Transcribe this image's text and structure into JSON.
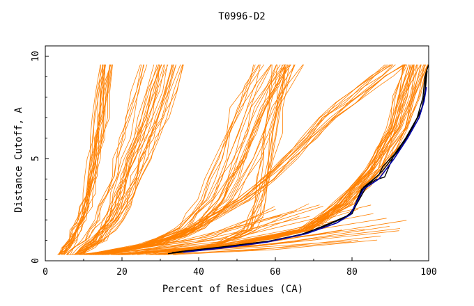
{
  "chart_data": {
    "type": "line",
    "title": "T0996-D2",
    "xlabel": "Percent of Residues (CA)",
    "ylabel": "Distance Cutoff, A",
    "xlim": [
      0,
      100
    ],
    "ylim": [
      0,
      10
    ],
    "xticks": [
      0,
      20,
      40,
      60,
      80,
      100
    ],
    "yticks": [
      0,
      5,
      10
    ],
    "xtick_labels": [
      "0",
      "20",
      "40",
      "60",
      "80",
      "100"
    ],
    "ytick_labels": [
      "0",
      "5",
      "10"
    ],
    "grid": false,
    "legend": "none",
    "colors": {
      "models": "#ff8000",
      "highlight_dark": "#000000",
      "highlight_blue": "#0000aa"
    },
    "series_groups": [
      {
        "name": "steep-left-models",
        "color": "#ff8000",
        "count": 18,
        "points": [
          [
            4,
            0.3
          ],
          [
            7,
            1.0
          ],
          [
            9,
            2.0
          ],
          [
            11,
            3.3
          ],
          [
            12.5,
            5.0
          ],
          [
            14,
            7.0
          ],
          [
            15.5,
            9.6
          ]
        ],
        "spread": 4.5
      },
      {
        "name": "left-mid-models",
        "color": "#ff8000",
        "count": 28,
        "points": [
          [
            8,
            0.3
          ],
          [
            13,
            1.0
          ],
          [
            17,
            2.0
          ],
          [
            20,
            3.3
          ],
          [
            23,
            5.0
          ],
          [
            27,
            7.0
          ],
          [
            31,
            9.6
          ]
        ],
        "spread": 12
      },
      {
        "name": "center-models",
        "color": "#ff8000",
        "count": 24,
        "points": [
          [
            12,
            0.3
          ],
          [
            28,
            0.8
          ],
          [
            38,
            1.6
          ],
          [
            45,
            3.0
          ],
          [
            50,
            5.0
          ],
          [
            55,
            7.5
          ],
          [
            61,
            9.6
          ]
        ],
        "spread": 14
      },
      {
        "name": "near-58-models",
        "color": "#ff8000",
        "count": 10,
        "points": [
          [
            30,
            0.3
          ],
          [
            45,
            0.8
          ],
          [
            53,
            1.5
          ],
          [
            56,
            3.0
          ],
          [
            58,
            5.0
          ],
          [
            60,
            7.5
          ],
          [
            62,
            9.6
          ]
        ],
        "spread": 5
      },
      {
        "name": "right-curve-models",
        "color": "#ff8000",
        "count": 30,
        "points": [
          [
            20,
            0.3
          ],
          [
            50,
            0.8
          ],
          [
            68,
            1.5
          ],
          [
            78,
            2.8
          ],
          [
            86,
            4.5
          ],
          [
            92,
            6.5
          ],
          [
            97,
            9.6
          ]
        ],
        "spread": 7
      },
      {
        "name": "slanted-models",
        "color": "#ff8000",
        "count": 12,
        "points": [
          [
            15,
            0.3
          ],
          [
            35,
            1.2
          ],
          [
            52,
            3.0
          ],
          [
            64,
            5.0
          ],
          [
            74,
            7.0
          ],
          [
            84,
            8.5
          ],
          [
            92,
            9.6
          ]
        ],
        "spread": 8
      }
    ],
    "highlight_series": [
      {
        "name": "best-model-1",
        "color": "#000000",
        "points": [
          [
            33,
            0.4
          ],
          [
            45,
            0.65
          ],
          [
            58,
            0.95
          ],
          [
            67,
            1.3
          ],
          [
            74,
            1.8
          ],
          [
            79,
            2.2
          ],
          [
            80.5,
            2.6
          ],
          [
            83,
            3.6
          ],
          [
            87,
            4.2
          ],
          [
            88,
            4.6
          ],
          [
            92,
            5.4
          ],
          [
            95,
            6.3
          ],
          [
            98,
            7.3
          ],
          [
            99,
            8.2
          ],
          [
            99.3,
            9.2
          ],
          [
            100,
            9.6
          ]
        ]
      },
      {
        "name": "best-model-2",
        "color": "#000000",
        "points": [
          [
            32,
            0.35
          ],
          [
            44,
            0.6
          ],
          [
            57,
            0.9
          ],
          [
            66,
            1.25
          ],
          [
            73,
            1.7
          ],
          [
            78,
            2.1
          ],
          [
            80,
            2.4
          ],
          [
            82.5,
            3.5
          ],
          [
            86,
            3.95
          ],
          [
            88.5,
            4.1
          ],
          [
            91,
            5.2
          ],
          [
            94,
            6.0
          ],
          [
            97,
            7.0
          ],
          [
            98.5,
            8.0
          ],
          [
            99,
            9.0
          ],
          [
            99.8,
            9.5
          ]
        ]
      },
      {
        "name": "best-model-3",
        "color": "#000000",
        "points": [
          [
            35,
            0.45
          ],
          [
            47,
            0.7
          ],
          [
            60,
            1.0
          ],
          [
            68,
            1.35
          ],
          [
            75,
            1.9
          ],
          [
            80,
            2.3
          ],
          [
            81,
            2.7
          ],
          [
            84,
            3.7
          ],
          [
            88,
            4.4
          ],
          [
            90,
            4.9
          ],
          [
            93,
            5.6
          ],
          [
            96,
            6.6
          ],
          [
            98.3,
            7.5
          ],
          [
            99.2,
            8.5
          ],
          [
            99.6,
            9.3
          ]
        ]
      },
      {
        "name": "blue-model",
        "color": "#0000aa",
        "points": [
          [
            36,
            0.42
          ],
          [
            46,
            0.62
          ],
          [
            58,
            0.92
          ],
          [
            68,
            1.32
          ],
          [
            76,
            1.85
          ],
          [
            79.5,
            2.25
          ],
          [
            83,
            3.5
          ],
          [
            87,
            4.0
          ],
          [
            91,
            5.0
          ],
          [
            94.5,
            6.0
          ],
          [
            97.5,
            7.0
          ],
          [
            98.8,
            7.8
          ],
          [
            99.4,
            8.5
          ]
        ]
      }
    ]
  }
}
